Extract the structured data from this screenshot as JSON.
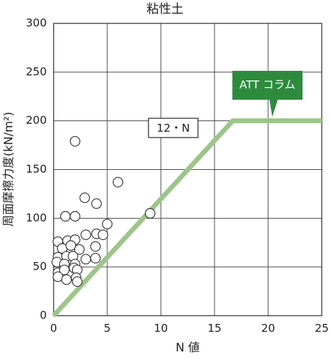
{
  "chart_data": {
    "type": "scatter",
    "title": "粘性土",
    "x_label": "N 値",
    "y_label": "周面摩擦力度(kN/m²)",
    "xlim": [
      0,
      25
    ],
    "ylim": [
      0,
      300
    ],
    "xticks": [
      0,
      5,
      10,
      15,
      20,
      25
    ],
    "yticks": [
      0,
      50,
      100,
      150,
      200,
      250,
      300
    ],
    "grid": true,
    "points": {
      "color": "#ffffff",
      "x": [
        2,
        6,
        2.9,
        4,
        9,
        1.1,
        2,
        5,
        3,
        4,
        4.6,
        0.4,
        1.3,
        2,
        2.4,
        3.9,
        0.8,
        1.6,
        0.4,
        1.2,
        1.8,
        3,
        3.9,
        0.3,
        1,
        2,
        0.4,
        1,
        1.9,
        2.2,
        0.4,
        1.2,
        2.1,
        2.2
      ],
      "y": [
        179,
        137,
        121,
        115,
        105,
        102,
        102,
        94,
        83,
        84,
        83,
        76,
        77,
        78,
        68,
        71,
        69,
        72,
        60,
        61,
        61,
        58,
        59,
        55,
        53,
        53,
        44,
        47,
        49,
        47,
        40,
        37,
        39,
        35
      ]
    },
    "line": {
      "color": "#9dc58a",
      "x": [
        0,
        16.7,
        25
      ],
      "y": [
        0,
        200,
        200
      ]
    },
    "annotations": [
      {
        "text": "12・N"
      },
      {
        "text": "ATT コラム",
        "color": "#2e8b3e"
      }
    ]
  }
}
